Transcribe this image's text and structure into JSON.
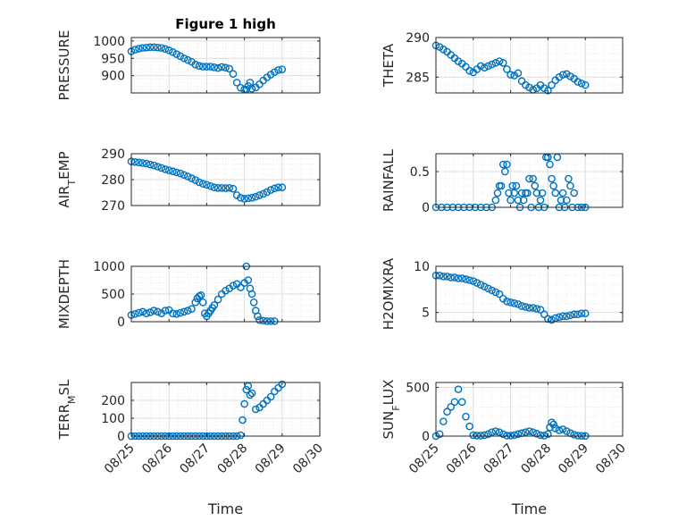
{
  "chart_data": [
    {
      "type": "scatter",
      "title": "Figure 1 high",
      "ylabel": "PRESSURE",
      "ylim": [
        850,
        1010
      ],
      "yticks": [
        900,
        950,
        1000
      ],
      "xlim": [
        0,
        5
      ],
      "series": [
        {
          "name": "",
          "x": [
            0,
            0.1,
            0.2,
            0.3,
            0.4,
            0.5,
            0.6,
            0.7,
            0.8,
            0.9,
            1.0,
            1.1,
            1.2,
            1.3,
            1.4,
            1.5,
            1.6,
            1.7,
            1.8,
            1.9,
            2.0,
            2.1,
            2.2,
            2.3,
            2.4,
            2.5,
            2.6,
            2.7,
            2.8,
            2.9,
            3.0,
            3.05,
            3.1,
            3.15,
            3.2,
            3.3,
            3.4,
            3.5,
            3.6,
            3.7,
            3.8,
            3.9,
            4.0
          ],
          "y": [
            970,
            975,
            978,
            980,
            981,
            982,
            982,
            981,
            980,
            977,
            973,
            968,
            962,
            956,
            950,
            945,
            940,
            932,
            928,
            926,
            926,
            926,
            924,
            922,
            925,
            923,
            920,
            905,
            880,
            865,
            860,
            860,
            870,
            880,
            862,
            866,
            875,
            886,
            895,
            903,
            910,
            916,
            918
          ]
        }
      ]
    },
    {
      "type": "scatter",
      "title": "",
      "ylabel": "THETA",
      "ylim": [
        283,
        290
      ],
      "yticks": [
        285,
        290
      ],
      "xlim": [
        0,
        5
      ],
      "series": [
        {
          "name": "",
          "x": [
            0,
            0.1,
            0.2,
            0.3,
            0.4,
            0.5,
            0.6,
            0.7,
            0.8,
            0.9,
            1.0,
            1.1,
            1.2,
            1.3,
            1.4,
            1.5,
            1.6,
            1.7,
            1.8,
            1.9,
            2.0,
            2.1,
            2.2,
            2.3,
            2.4,
            2.5,
            2.6,
            2.7,
            2.8,
            2.9,
            3.0,
            3.1,
            3.2,
            3.3,
            3.4,
            3.5,
            3.6,
            3.7,
            3.8,
            3.9,
            4.0
          ],
          "y": [
            289,
            288.8,
            288.5,
            288.2,
            287.8,
            287.4,
            287,
            286.7,
            286.3,
            285.8,
            285.6,
            286,
            286.4,
            286.2,
            286.4,
            286.6,
            286.8,
            287,
            286.8,
            286,
            285.3,
            285.2,
            285.5,
            284.5,
            284,
            283.7,
            283.4,
            283.6,
            284,
            283.6,
            283.3,
            284,
            284.6,
            285,
            285.3,
            285.4,
            285.1,
            284.8,
            284.4,
            284.2,
            284
          ]
        }
      ]
    },
    {
      "type": "scatter",
      "title": "",
      "ylabel": "AIR_TEMP",
      "ylim": [
        270,
        290
      ],
      "yticks": [
        270,
        280,
        290
      ],
      "xlim": [
        0,
        5
      ],
      "series": [
        {
          "name": "",
          "x": [
            0,
            0.1,
            0.2,
            0.3,
            0.4,
            0.5,
            0.6,
            0.7,
            0.8,
            0.9,
            1.0,
            1.1,
            1.2,
            1.3,
            1.4,
            1.5,
            1.6,
            1.7,
            1.8,
            1.9,
            2.0,
            2.1,
            2.2,
            2.3,
            2.4,
            2.5,
            2.6,
            2.7,
            2.8,
            2.9,
            3.0,
            3.1,
            3.2,
            3.3,
            3.4,
            3.5,
            3.6,
            3.7,
            3.8,
            3.9,
            4.0
          ],
          "y": [
            287,
            286.8,
            286.6,
            286.4,
            286.2,
            285.8,
            285.5,
            285,
            284.5,
            284,
            283.6,
            283.2,
            282.8,
            282.4,
            281.8,
            281.2,
            280.5,
            279.8,
            279,
            278.4,
            278,
            277.5,
            277,
            276.8,
            276.8,
            276.7,
            276.8,
            276.5,
            274,
            273,
            272.6,
            272.8,
            273,
            273.4,
            274,
            274.5,
            275.2,
            276,
            276.6,
            277,
            277
          ]
        }
      ]
    },
    {
      "type": "scatter",
      "title": "",
      "ylabel": "RAINFALL",
      "ylim": [
        0,
        0.75
      ],
      "yticks": [
        0,
        0.5
      ],
      "xlim": [
        0,
        5
      ],
      "series": [
        {
          "name": "",
          "x": [
            0,
            0.15,
            0.3,
            0.45,
            0.6,
            0.75,
            0.9,
            1.05,
            1.2,
            1.35,
            1.5,
            1.6,
            1.65,
            1.7,
            1.75,
            1.8,
            1.85,
            1.9,
            1.95,
            2.0,
            2.05,
            2.1,
            2.15,
            2.2,
            2.25,
            2.3,
            2.35,
            2.4,
            2.45,
            2.5,
            2.55,
            2.6,
            2.65,
            2.7,
            2.75,
            2.8,
            2.85,
            2.9,
            2.95,
            3.0,
            3.05,
            3.1,
            3.15,
            3.2,
            3.25,
            3.3,
            3.35,
            3.4,
            3.45,
            3.5,
            3.55,
            3.6,
            3.65,
            3.7,
            3.8,
            3.9,
            4.0
          ],
          "y": [
            0,
            0,
            0,
            0,
            0,
            0,
            0,
            0,
            0,
            0,
            0,
            0.1,
            0.2,
            0.3,
            0.3,
            0.6,
            0.5,
            0.6,
            0.2,
            0.1,
            0.3,
            0.2,
            0.3,
            0.1,
            0,
            0.2,
            0.1,
            0.2,
            0.2,
            0.4,
            0,
            0.4,
            0.3,
            0.2,
            0,
            0.1,
            0.2,
            0,
            0.7,
            0.7,
            0.6,
            0.4,
            0.3,
            0.2,
            0.7,
            0,
            0.1,
            0.2,
            0,
            0.1,
            0.4,
            0.3,
            0,
            0.2,
            0,
            0,
            0
          ]
        }
      ]
    },
    {
      "type": "scatter",
      "title": "",
      "ylabel": "MIXDEPTH",
      "ylim": [
        0,
        1000
      ],
      "yticks": [
        0,
        500,
        1000
      ],
      "xlim": [
        0,
        5
      ],
      "series": [
        {
          "name": "",
          "x": [
            0,
            0.1,
            0.2,
            0.3,
            0.4,
            0.5,
            0.6,
            0.7,
            0.8,
            0.9,
            1.0,
            1.1,
            1.2,
            1.3,
            1.4,
            1.5,
            1.6,
            1.7,
            1.75,
            1.8,
            1.85,
            1.9,
            1.95,
            2.0,
            2.05,
            2.1,
            2.15,
            2.2,
            2.3,
            2.4,
            2.5,
            2.6,
            2.7,
            2.8,
            2.9,
            3.0,
            3.05,
            3.1,
            3.15,
            3.2,
            3.25,
            3.3,
            3.35,
            3.4,
            3.5,
            3.6,
            3.7,
            3.8
          ],
          "y": [
            120,
            140,
            160,
            180,
            150,
            170,
            200,
            180,
            150,
            200,
            210,
            150,
            140,
            160,
            180,
            200,
            230,
            350,
            420,
            460,
            480,
            350,
            150,
            100,
            150,
            200,
            250,
            300,
            400,
            500,
            560,
            600,
            650,
            680,
            620,
            700,
            1000,
            750,
            600,
            500,
            350,
            200,
            100,
            30,
            20,
            10,
            10,
            10
          ]
        }
      ]
    },
    {
      "type": "scatter",
      "title": "",
      "ylabel": "H2OMIXRA",
      "ylim": [
        4,
        10
      ],
      "yticks": [
        5,
        10
      ],
      "xlim": [
        0,
        5
      ],
      "series": [
        {
          "name": "",
          "x": [
            0,
            0.1,
            0.2,
            0.3,
            0.4,
            0.5,
            0.6,
            0.7,
            0.8,
            0.9,
            1.0,
            1.1,
            1.2,
            1.3,
            1.4,
            1.5,
            1.6,
            1.7,
            1.8,
            1.9,
            2.0,
            2.1,
            2.2,
            2.3,
            2.4,
            2.5,
            2.6,
            2.7,
            2.8,
            2.9,
            3.0,
            3.1,
            3.2,
            3.3,
            3.4,
            3.5,
            3.6,
            3.7,
            3.8,
            3.9,
            4.0
          ],
          "y": [
            9,
            9,
            8.9,
            8.9,
            8.8,
            8.8,
            8.7,
            8.7,
            8.6,
            8.5,
            8.4,
            8.2,
            8.0,
            7.8,
            7.6,
            7.4,
            7.2,
            7.0,
            6.5,
            6.2,
            6.1,
            6.0,
            5.9,
            5.7,
            5.6,
            5.5,
            5.5,
            5.4,
            5.3,
            4.8,
            4.3,
            4.2,
            4.4,
            4.5,
            4.6,
            4.6,
            4.7,
            4.8,
            4.8,
            4.9,
            4.9
          ]
        }
      ]
    },
    {
      "type": "scatter",
      "title": "",
      "ylabel": "TERR_MSL",
      "ylim": [
        0,
        300
      ],
      "yticks": [
        0,
        100,
        200
      ],
      "xlim": [
        0,
        5
      ],
      "series": [
        {
          "name": "",
          "x": [
            0,
            0.1,
            0.2,
            0.3,
            0.4,
            0.5,
            0.6,
            0.7,
            0.8,
            0.9,
            1.0,
            1.1,
            1.2,
            1.3,
            1.4,
            1.5,
            1.6,
            1.7,
            1.8,
            1.9,
            2.0,
            2.1,
            2.2,
            2.3,
            2.4,
            2.5,
            2.6,
            2.7,
            2.8,
            2.9,
            2.95,
            3.0,
            3.05,
            3.1,
            3.15,
            3.2,
            3.3,
            3.4,
            3.5,
            3.6,
            3.7,
            3.8,
            3.9,
            4.0
          ],
          "y": [
            0,
            0,
            0,
            0,
            0,
            0,
            0,
            0,
            0,
            0,
            0,
            0,
            0,
            0,
            0,
            0,
            0,
            0,
            0,
            0,
            0,
            0,
            0,
            0,
            0,
            0,
            0,
            0,
            0,
            5,
            90,
            180,
            260,
            280,
            230,
            240,
            150,
            160,
            180,
            200,
            220,
            250,
            270,
            290
          ]
        }
      ]
    },
    {
      "type": "scatter",
      "title": "",
      "ylabel": "SUN_FLUX",
      "ylim": [
        0,
        550
      ],
      "yticks": [
        0,
        500
      ],
      "xlim": [
        0,
        5
      ],
      "series": [
        {
          "name": "",
          "x": [
            0,
            0.1,
            0.2,
            0.3,
            0.4,
            0.5,
            0.6,
            0.7,
            0.8,
            0.9,
            1.0,
            1.1,
            1.2,
            1.3,
            1.4,
            1.5,
            1.6,
            1.7,
            1.8,
            1.9,
            2.0,
            2.1,
            2.2,
            2.3,
            2.4,
            2.5,
            2.6,
            2.7,
            2.8,
            2.9,
            3.0,
            3.05,
            3.1,
            3.15,
            3.2,
            3.3,
            3.4,
            3.5,
            3.6,
            3.7,
            3.8,
            3.9,
            4.0
          ],
          "y": [
            0,
            20,
            150,
            250,
            300,
            350,
            480,
            350,
            200,
            100,
            10,
            5,
            5,
            10,
            20,
            40,
            50,
            40,
            20,
            5,
            5,
            10,
            20,
            30,
            40,
            50,
            40,
            25,
            10,
            5,
            20,
            90,
            140,
            120,
            80,
            60,
            70,
            50,
            30,
            15,
            5,
            3,
            2
          ]
        }
      ]
    }
  ],
  "shared": {
    "xticks": [
      "08/25",
      "08/26",
      "08/27",
      "08/28",
      "08/29",
      "08/30"
    ],
    "xlabel_left": "Time",
    "xlabel_right": "Time",
    "color": "#0072BD",
    "grid": true
  }
}
